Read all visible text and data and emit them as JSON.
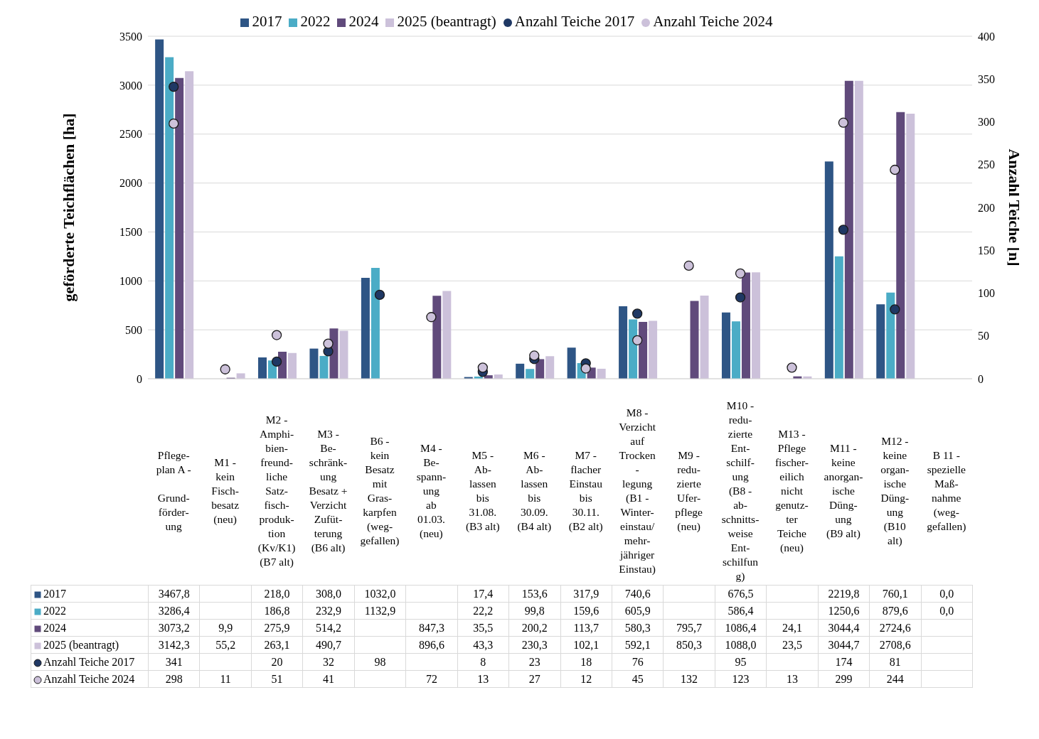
{
  "chart_data": {
    "type": "bar",
    "categories": [
      "Pflege-\nplan A -\n\nGrund-\nförder-\nung",
      "M1 -\nkein\nFisch-\nbesatz\n(neu)",
      "M2 -\nAmphi-\nbien-\nfreund-\nliche\nSatz-\nfisch-\nproduk-\ntion\n(Kv/K1)\n(B7 alt)",
      "M3 -\nBe-\nschränk-\nung\nBesatz +\nVerzicht\nZufüt-\nterung\n(B6 alt)",
      "B6 -\nkein\nBesatz\nmit\nGras-\nkarpfen\n(weg-\ngefallen)",
      "M4 -\nBe-\nspann-\nung\nab\n01.03.\n(neu)",
      "M5 -\nAb-\nlassen\nbis\n31.08.\n(B3 alt)",
      "M6 -\nAb-\nlassen\nbis\n30.09.\n(B4 alt)",
      "M7 -\nflacher\nEinstau\nbis\n30.11.\n(B2 alt)",
      "M8 -\nVerzicht\nauf\nTrocken\n-\nlegung\n(B1 -\nWinter-\neinstau/\nmehr-\njähriger\nEinstau)",
      "M9 -\nredu-\nzierte\nUfer-\npflege\n(neu)",
      "M10 -\nredu-\nzierte\nEnt-\nschilf-\nung\n(B8 -\nab-\nschnitts-\nweise\nEnt-\nschilfun\ng)",
      "M13 -\nPflege\nfischer-\neilich\nnicht\ngenutz-\nter\nTeiche\n(neu)",
      "M11  -\nkeine\nanorgan-\nische\nDüng-\nung\n(B9 alt)",
      "M12 -\nkeine\norgan-\nische\nDüng-\nung\n(B10\nalt)",
      "B 11 -\nspezielle\nMaß-\nnahme\n(weg-\ngefallen)"
    ],
    "series": [
      {
        "name": "2017",
        "color": "#2e5585",
        "values": [
          3467.8,
          null,
          218.0,
          308.0,
          1032.0,
          null,
          17.4,
          153.6,
          317.9,
          740.6,
          null,
          676.5,
          null,
          2219.8,
          760.1,
          0.0
        ],
        "value_labels": [
          "3467,8",
          null,
          "218,0",
          "308,0",
          "1032,0",
          null,
          "17,4",
          "153,6",
          "317,9",
          "740,6",
          null,
          "676,5",
          null,
          "2219,8",
          "760,1",
          "0,0"
        ]
      },
      {
        "name": "2022",
        "color": "#4bacc6",
        "values": [
          3286.4,
          null,
          186.8,
          232.9,
          1132.9,
          null,
          22.2,
          99.8,
          159.6,
          605.9,
          null,
          586.4,
          null,
          1250.6,
          879.6,
          0.0
        ],
        "value_labels": [
          "3286,4",
          null,
          "186,8",
          "232,9",
          "1132,9",
          null,
          "22,2",
          "99,8",
          "159,6",
          "605,9",
          null,
          "586,4",
          null,
          "1250,6",
          "879,6",
          "0,0"
        ]
      },
      {
        "name": "2024",
        "color": "#604a7b",
        "values": [
          3073.2,
          9.9,
          275.9,
          514.2,
          null,
          847.3,
          35.5,
          200.2,
          113.7,
          580.3,
          795.7,
          1086.4,
          24.1,
          3044.4,
          2724.6,
          null
        ],
        "value_labels": [
          "3073,2",
          "9,9",
          "275,9",
          "514,2",
          null,
          "847,3",
          "35,5",
          "200,2",
          "113,7",
          "580,3",
          "795,7",
          "1086,4",
          "24,1",
          "3044,4",
          "2724,6",
          null
        ]
      },
      {
        "name": "2025 (beantragt)",
        "color": "#ccc1da",
        "values": [
          3142.3,
          55.2,
          263.1,
          490.7,
          null,
          896.6,
          43.3,
          230.3,
          102.1,
          592.1,
          850.3,
          1088.0,
          23.5,
          3044.7,
          2708.6,
          null
        ],
        "value_labels": [
          "3142,3",
          "55,2",
          "263,1",
          "490,7",
          null,
          "896,6",
          "43,3",
          "230,3",
          "102,1",
          "592,1",
          "850,3",
          "1088,0",
          "23,5",
          "3044,7",
          "2708,6",
          null
        ]
      },
      {
        "name": "Anzahl Teiche 2017",
        "type": "scatter",
        "axis": "y2",
        "color": "#1f3864",
        "values": [
          341,
          null,
          20,
          32,
          98,
          null,
          8,
          23,
          18,
          76,
          null,
          95,
          null,
          174,
          81,
          null
        ],
        "value_labels": [
          "341",
          null,
          "20",
          "32",
          "98",
          null,
          "8",
          "23",
          "18",
          "76",
          null,
          "95",
          null,
          "174",
          "81",
          null
        ]
      },
      {
        "name": "Anzahl Teiche 2024",
        "type": "scatter",
        "axis": "y2",
        "color": "#ccc1da",
        "values": [
          298,
          11,
          51,
          41,
          null,
          72,
          13,
          27,
          12,
          45,
          132,
          123,
          13,
          299,
          244,
          null
        ],
        "value_labels": [
          "298",
          "11",
          "51",
          "41",
          null,
          "72",
          "13",
          "27",
          "12",
          "45",
          "132",
          "123",
          "13",
          "299",
          "244",
          null
        ]
      }
    ],
    "ylabel": "geförderte Teichflächen [ha]",
    "y2label": "Anzahl Teiche [n]",
    "ylim": [
      0,
      3500
    ],
    "yticks": [
      0,
      500,
      1000,
      1500,
      2000,
      2500,
      3000,
      3500
    ],
    "y2lim": [
      0,
      400
    ],
    "y2ticks": [
      0,
      50,
      100,
      150,
      200,
      250,
      300,
      350,
      400
    ],
    "grid": "y",
    "legend": "top",
    "marker": "circle"
  }
}
